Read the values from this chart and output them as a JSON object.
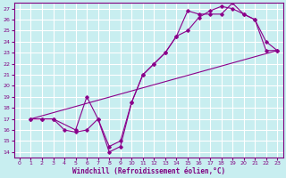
{
  "xlabel": "Windchill (Refroidissement éolien,°C)",
  "bg_color": "#c8eef0",
  "line_color": "#8b008b",
  "marker_color": "#8b008b",
  "grid_color": "#ffffff",
  "axis_color": "#800080",
  "xlim": [
    -0.5,
    23.5
  ],
  "ylim": [
    13.5,
    27.5
  ],
  "xticks": [
    0,
    1,
    2,
    3,
    4,
    5,
    6,
    7,
    8,
    9,
    10,
    11,
    12,
    13,
    14,
    15,
    16,
    17,
    18,
    19,
    20,
    21,
    22,
    23
  ],
  "yticks": [
    14,
    15,
    16,
    17,
    18,
    19,
    20,
    21,
    22,
    23,
    24,
    25,
    26,
    27
  ],
  "line1_x": [
    1,
    2,
    3,
    4,
    5,
    6,
    7,
    8,
    9,
    10,
    11,
    12,
    13,
    14,
    15,
    16,
    17,
    18,
    19,
    20,
    21,
    22,
    23
  ],
  "line1_y": [
    17,
    17,
    17,
    16,
    15.8,
    16,
    17,
    14,
    14.5,
    18.5,
    21,
    22,
    23,
    24.5,
    25,
    26.2,
    26.8,
    27.2,
    27,
    26.5,
    26,
    24,
    23.2
  ],
  "line2_x": [
    1,
    2,
    3,
    5,
    6,
    7,
    8,
    9,
    10,
    11,
    12,
    13,
    14,
    15,
    16,
    17,
    18,
    19,
    20,
    21,
    22,
    23
  ],
  "line2_y": [
    17,
    17,
    17,
    16,
    19,
    17,
    14.5,
    15,
    18.5,
    21,
    22,
    23,
    24.5,
    26.8,
    26.5,
    26.5,
    26.5,
    27.5,
    26.5,
    26,
    23.2,
    23.2
  ]
}
